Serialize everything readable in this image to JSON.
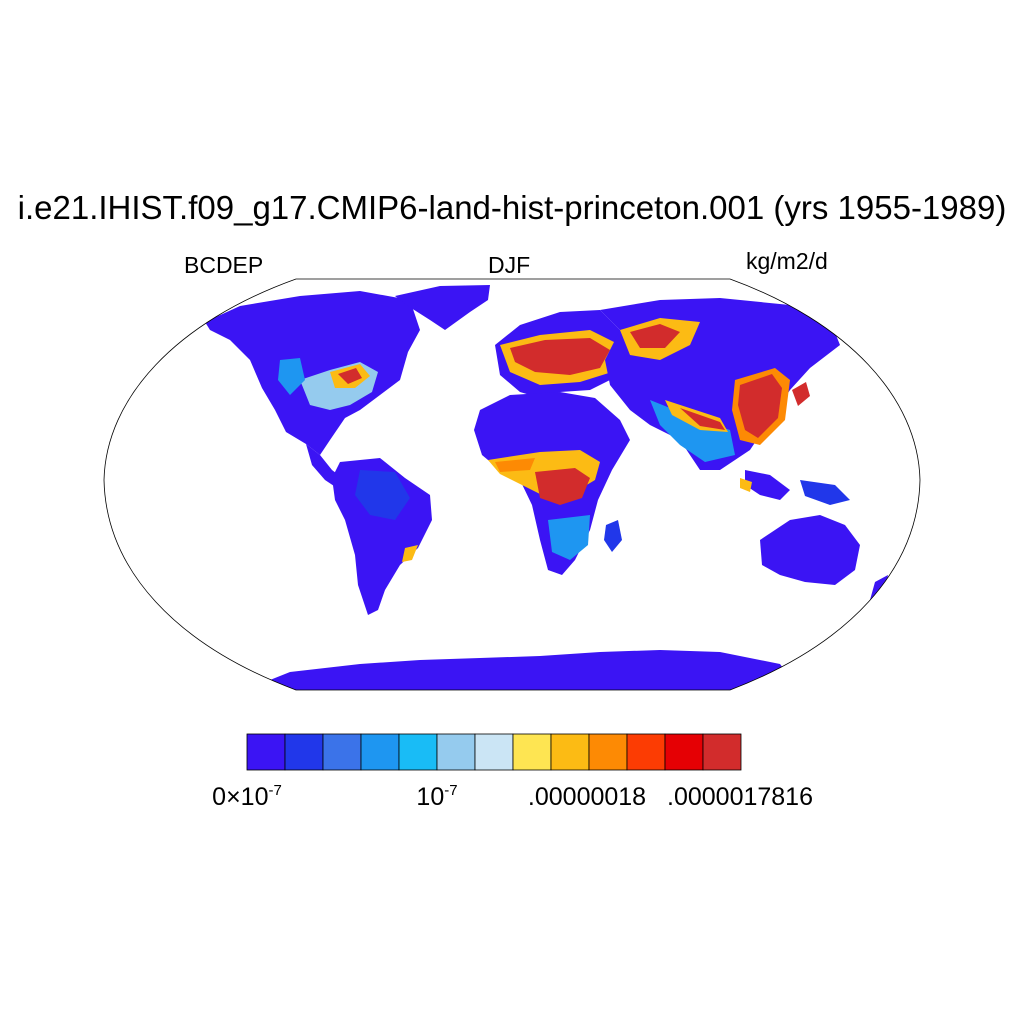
{
  "title": "i.e21.IHIST.f09_g17.CMIP6-land-hist-princeton.001 (yrs 1955-1989)",
  "left_label": "BCDEP",
  "center_label": "DJF",
  "right_label": "kg/m2/d",
  "colorbar": {
    "colors": [
      "#3b14f4",
      "#2137ea",
      "#3b73e9",
      "#1e96f1",
      "#19bcf6",
      "#95cbee",
      "#cbe5f5",
      "#fee552",
      "#fcbb14",
      "#fd8a04",
      "#fc3c03",
      "#e50004",
      "#d22c2c"
    ],
    "tick_labels": [
      {
        "mantissa": "0×10",
        "exponent": "-7"
      },
      {
        "mantissa": "10",
        "exponent": "-7"
      },
      {
        "mantissa": ".00000018",
        "exponent": ""
      },
      {
        "mantissa": ".0000017816",
        "exponent": ""
      }
    ]
  }
}
